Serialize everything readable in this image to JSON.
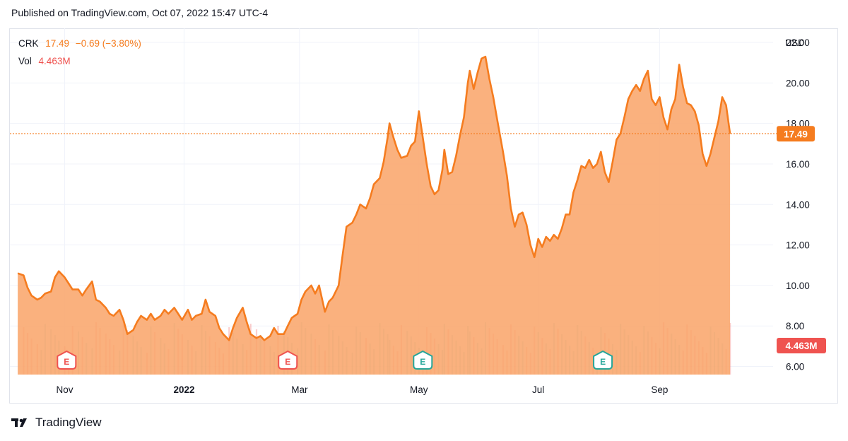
{
  "header": {
    "published": "Published on TradingView.com, Oct 07, 2022 15:47 UTC-4"
  },
  "legend": {
    "symbol": "CRK",
    "price": "17.49",
    "change": "−0.69 (−3.80%)",
    "vol_label": "Vol",
    "vol_value": "4.463M"
  },
  "axis": {
    "currency": "USD"
  },
  "footer": {
    "brand": "TradingView"
  },
  "colors": {
    "line": "#f57c1f",
    "area": "#f9a66c",
    "volume_up": "#26a69a",
    "volume_down": "#ef5350",
    "vol_badge": "#ef5350"
  },
  "chart_data": {
    "type": "area",
    "symbol": "CRK",
    "y_axis": {
      "ticks": [
        6,
        8,
        10,
        12,
        14,
        16,
        18,
        20,
        22
      ],
      "tick_labels": [
        "6.00",
        "8.00",
        "10.00",
        "12.00",
        "14.00",
        "16.00",
        "18.00",
        "20.00",
        "22.00"
      ],
      "range": [
        5.6,
        22.0
      ]
    },
    "x_axis": {
      "ticks": [
        {
          "label": "Nov",
          "x": "2021-11-01"
        },
        {
          "label": "2022",
          "x": "2022-01-01"
        },
        {
          "label": "Mar",
          "x": "2022-03-01"
        },
        {
          "label": "May",
          "x": "2022-05-01"
        },
        {
          "label": "Jul",
          "x": "2022-07-01"
        },
        {
          "label": "Sep",
          "x": "2022-09-01"
        }
      ]
    },
    "last_price": 17.49,
    "last_price_label": "17.49",
    "volume_label": "4.463M",
    "earnings_markers": [
      {
        "x": "2021-11-02",
        "kind": "E",
        "state": "past"
      },
      {
        "x": "2022-02-23",
        "kind": "E",
        "state": "past"
      },
      {
        "x": "2022-05-03",
        "kind": "E",
        "state": "upcoming"
      },
      {
        "x": "2022-08-03",
        "kind": "E",
        "state": "upcoming"
      }
    ],
    "series": [
      {
        "values": [
          [
            "2021-10-08",
            10.6
          ],
          [
            "2021-10-11",
            10.5
          ],
          [
            "2021-10-13",
            9.9
          ],
          [
            "2021-10-15",
            9.5
          ],
          [
            "2021-10-18",
            9.3
          ],
          [
            "2021-10-20",
            9.4
          ],
          [
            "2021-10-22",
            9.6
          ],
          [
            "2021-10-25",
            9.7
          ],
          [
            "2021-10-27",
            10.4
          ],
          [
            "2021-10-29",
            10.7
          ],
          [
            "2021-11-01",
            10.4
          ],
          [
            "2021-11-03",
            10.1
          ],
          [
            "2021-11-05",
            9.8
          ],
          [
            "2021-11-08",
            9.8
          ],
          [
            "2021-11-10",
            9.5
          ],
          [
            "2021-11-12",
            9.8
          ],
          [
            "2021-11-15",
            10.2
          ],
          [
            "2021-11-17",
            9.3
          ],
          [
            "2021-11-19",
            9.2
          ],
          [
            "2021-11-22",
            8.9
          ],
          [
            "2021-11-24",
            8.6
          ],
          [
            "2021-11-26",
            8.5
          ],
          [
            "2021-11-29",
            8.8
          ],
          [
            "2021-12-01",
            8.3
          ],
          [
            "2021-12-03",
            7.6
          ],
          [
            "2021-12-06",
            7.8
          ],
          [
            "2021-12-08",
            8.2
          ],
          [
            "2021-12-10",
            8.5
          ],
          [
            "2021-12-13",
            8.3
          ],
          [
            "2021-12-15",
            8.6
          ],
          [
            "2021-12-17",
            8.3
          ],
          [
            "2021-12-20",
            8.5
          ],
          [
            "2021-12-22",
            8.8
          ],
          [
            "2021-12-24",
            8.6
          ],
          [
            "2021-12-27",
            8.9
          ],
          [
            "2021-12-29",
            8.6
          ],
          [
            "2021-12-31",
            8.3
          ],
          [
            "2022-01-03",
            8.8
          ],
          [
            "2022-01-05",
            8.3
          ],
          [
            "2022-01-07",
            8.5
          ],
          [
            "2022-01-10",
            8.6
          ],
          [
            "2022-01-12",
            9.3
          ],
          [
            "2022-01-14",
            8.7
          ],
          [
            "2022-01-17",
            8.5
          ],
          [
            "2022-01-19",
            7.9
          ],
          [
            "2022-01-21",
            7.6
          ],
          [
            "2022-01-24",
            7.3
          ],
          [
            "2022-01-26",
            7.9
          ],
          [
            "2022-01-28",
            8.4
          ],
          [
            "2022-01-31",
            8.9
          ],
          [
            "2022-02-02",
            8.2
          ],
          [
            "2022-02-04",
            7.6
          ],
          [
            "2022-02-07",
            7.4
          ],
          [
            "2022-02-09",
            7.5
          ],
          [
            "2022-02-11",
            7.3
          ],
          [
            "2022-02-14",
            7.5
          ],
          [
            "2022-02-16",
            7.9
          ],
          [
            "2022-02-18",
            7.6
          ],
          [
            "2022-02-21",
            7.6
          ],
          [
            "2022-02-23",
            8.0
          ],
          [
            "2022-02-25",
            8.4
          ],
          [
            "2022-02-28",
            8.6
          ],
          [
            "2022-03-02",
            9.3
          ],
          [
            "2022-03-04",
            9.7
          ],
          [
            "2022-03-07",
            10.0
          ],
          [
            "2022-03-09",
            9.6
          ],
          [
            "2022-03-11",
            10.0
          ],
          [
            "2022-03-14",
            8.7
          ],
          [
            "2022-03-16",
            9.2
          ],
          [
            "2022-03-18",
            9.4
          ],
          [
            "2022-03-21",
            10.0
          ],
          [
            "2022-03-23",
            11.5
          ],
          [
            "2022-03-25",
            12.9
          ],
          [
            "2022-03-28",
            13.1
          ],
          [
            "2022-03-30",
            13.5
          ],
          [
            "2022-04-01",
            14.0
          ],
          [
            "2022-04-04",
            13.8
          ],
          [
            "2022-04-06",
            14.3
          ],
          [
            "2022-04-08",
            15.0
          ],
          [
            "2022-04-11",
            15.3
          ],
          [
            "2022-04-13",
            16.1
          ],
          [
            "2022-04-15",
            17.3
          ],
          [
            "2022-04-16",
            18.0
          ],
          [
            "2022-04-18",
            17.3
          ],
          [
            "2022-04-20",
            16.7
          ],
          [
            "2022-04-22",
            16.3
          ],
          [
            "2022-04-25",
            16.4
          ],
          [
            "2022-04-27",
            16.9
          ],
          [
            "2022-04-29",
            17.1
          ],
          [
            "2022-05-01",
            18.6
          ],
          [
            "2022-05-03",
            17.3
          ],
          [
            "2022-05-05",
            16.0
          ],
          [
            "2022-05-07",
            14.9
          ],
          [
            "2022-05-09",
            14.5
          ],
          [
            "2022-05-11",
            14.7
          ],
          [
            "2022-05-13",
            15.7
          ],
          [
            "2022-05-14",
            16.7
          ],
          [
            "2022-05-16",
            15.5
          ],
          [
            "2022-05-18",
            15.6
          ],
          [
            "2022-05-20",
            16.4
          ],
          [
            "2022-05-22",
            17.4
          ],
          [
            "2022-05-24",
            18.3
          ],
          [
            "2022-05-26",
            20.0
          ],
          [
            "2022-05-27",
            20.6
          ],
          [
            "2022-05-29",
            19.7
          ],
          [
            "2022-05-31",
            20.5
          ],
          [
            "2022-06-02",
            21.2
          ],
          [
            "2022-06-04",
            21.3
          ],
          [
            "2022-06-06",
            20.2
          ],
          [
            "2022-06-08",
            19.3
          ],
          [
            "2022-06-10",
            18.2
          ],
          [
            "2022-06-13",
            16.6
          ],
          [
            "2022-06-15",
            15.4
          ],
          [
            "2022-06-17",
            13.8
          ],
          [
            "2022-06-19",
            12.9
          ],
          [
            "2022-06-21",
            13.5
          ],
          [
            "2022-06-23",
            13.6
          ],
          [
            "2022-06-25",
            13.0
          ],
          [
            "2022-06-27",
            12.0
          ],
          [
            "2022-06-29",
            11.4
          ],
          [
            "2022-07-01",
            12.3
          ],
          [
            "2022-07-03",
            11.9
          ],
          [
            "2022-07-05",
            12.4
          ],
          [
            "2022-07-07",
            12.2
          ],
          [
            "2022-07-09",
            12.5
          ],
          [
            "2022-07-11",
            12.3
          ],
          [
            "2022-07-13",
            12.8
          ],
          [
            "2022-07-15",
            13.5
          ],
          [
            "2022-07-17",
            13.5
          ],
          [
            "2022-07-19",
            14.6
          ],
          [
            "2022-07-21",
            15.2
          ],
          [
            "2022-07-23",
            15.9
          ],
          [
            "2022-07-25",
            15.8
          ],
          [
            "2022-07-27",
            16.2
          ],
          [
            "2022-07-29",
            15.8
          ],
          [
            "2022-07-31",
            16.0
          ],
          [
            "2022-08-02",
            16.6
          ],
          [
            "2022-08-04",
            15.6
          ],
          [
            "2022-08-06",
            15.1
          ],
          [
            "2022-08-08",
            16.1
          ],
          [
            "2022-08-10",
            17.2
          ],
          [
            "2022-08-12",
            17.5
          ],
          [
            "2022-08-14",
            18.3
          ],
          [
            "2022-08-16",
            19.2
          ],
          [
            "2022-08-18",
            19.6
          ],
          [
            "2022-08-20",
            19.9
          ],
          [
            "2022-08-22",
            19.6
          ],
          [
            "2022-08-24",
            20.2
          ],
          [
            "2022-08-26",
            20.6
          ],
          [
            "2022-08-28",
            19.2
          ],
          [
            "2022-08-30",
            18.9
          ],
          [
            "2022-09-01",
            19.3
          ],
          [
            "2022-09-03",
            18.3
          ],
          [
            "2022-09-05",
            17.7
          ],
          [
            "2022-09-07",
            18.7
          ],
          [
            "2022-09-09",
            19.2
          ],
          [
            "2022-09-11",
            20.9
          ],
          [
            "2022-09-13",
            19.8
          ],
          [
            "2022-09-15",
            19.0
          ],
          [
            "2022-09-17",
            18.9
          ],
          [
            "2022-09-19",
            18.6
          ],
          [
            "2022-09-21",
            17.9
          ],
          [
            "2022-09-23",
            16.5
          ],
          [
            "2022-09-25",
            15.9
          ],
          [
            "2022-09-27",
            16.5
          ],
          [
            "2022-09-29",
            17.3
          ],
          [
            "2022-10-01",
            18.1
          ],
          [
            "2022-10-03",
            19.3
          ],
          [
            "2022-10-05",
            18.9
          ],
          [
            "2022-10-07",
            17.49
          ]
        ]
      }
    ]
  }
}
